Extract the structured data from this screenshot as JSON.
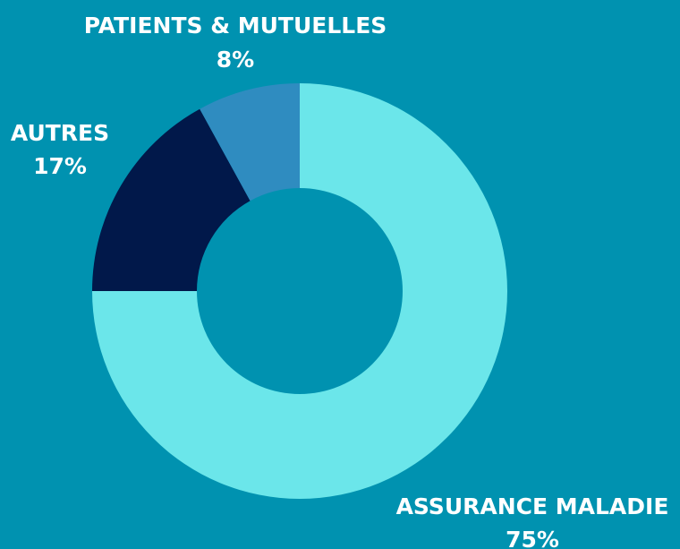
{
  "chart_data": {
    "type": "donut",
    "categories": [
      "ASSURANCE MALADIE",
      "AUTRES",
      "PATIENTS & MUTUELLES"
    ],
    "values": [
      75,
      17,
      8
    ],
    "value_labels": [
      "75%",
      "17%",
      "8%"
    ],
    "colors": [
      "#6be6ea",
      "#01184a",
      "#2f8cc0"
    ]
  }
}
